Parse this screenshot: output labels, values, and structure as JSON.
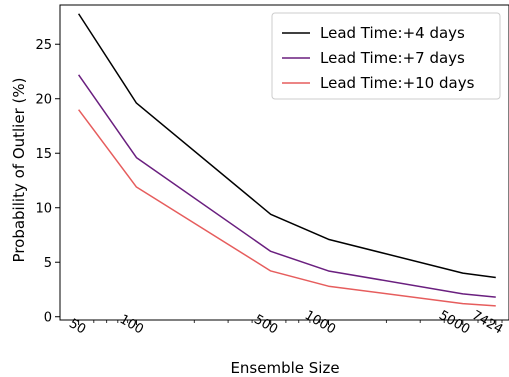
{
  "chart_data": {
    "type": "line",
    "xscale": "log",
    "x": [
      50,
      100,
      500,
      1000,
      5000,
      7424
    ],
    "x_tick_labels": [
      "50",
      "100",
      "500",
      "1000",
      "5000",
      "7424"
    ],
    "xlabel": "Ensemble Size",
    "ylabel": "Probability of Outlier (%)",
    "y_ticks": [
      0,
      5,
      10,
      15,
      20,
      25
    ],
    "y_tick_labels": [
      "0",
      "5",
      "10",
      "15",
      "20",
      "25"
    ],
    "ylim": [
      -0.3,
      28.6
    ],
    "xlim": [
      40,
      8700
    ],
    "grid": false,
    "legend_position": "top-right",
    "series": [
      {
        "name": "Lead Time:+4 days",
        "color": "#000000",
        "values": [
          27.8,
          19.6,
          9.4,
          7.1,
          4.0,
          3.6
        ]
      },
      {
        "name": "Lead Time:+7 days",
        "color": "#6a1f7f",
        "values": [
          22.2,
          14.6,
          6.0,
          4.2,
          2.1,
          1.8
        ]
      },
      {
        "name": "Lead Time:+10 days",
        "color": "#e65d5d",
        "values": [
          19.0,
          11.9,
          4.2,
          2.8,
          1.2,
          1.0
        ]
      }
    ]
  }
}
